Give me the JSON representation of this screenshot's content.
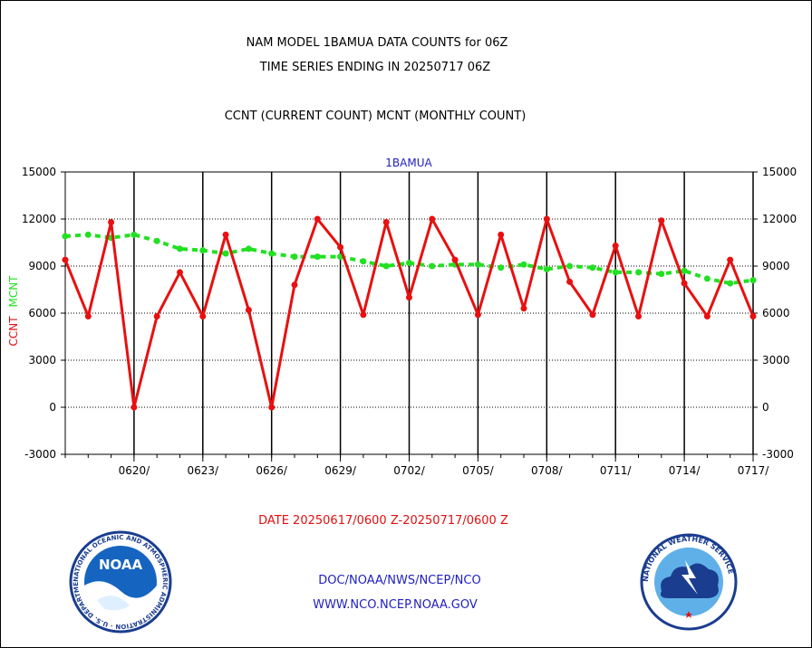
{
  "header": {
    "title_line1": "NAM MODEL 1BAMUA DATA COUNTS for 06Z",
    "title_line2": "TIME SERIES ENDING IN 20250717 06Z",
    "subtitle": "CCNT (CURRENT COUNT) MCNT (MONTHLY COUNT)"
  },
  "footer": {
    "date_range": "DATE 20250617/0600 Z-20250717/0600 Z",
    "link1": "DOC/NOAA/NWS/NCEP/NCO",
    "link2": "WWW.NCO.NCEP.NOAA.GOV"
  },
  "logos": {
    "noaa": {
      "icon": "noaa-logo",
      "label": "NOAA",
      "ring_text": "NATIONAL OCEANIC AND ATMOSPHERIC ADMINISTRATION · U.S. DEPARTMENT OF COMMERCE"
    },
    "nws": {
      "icon": "nws-logo",
      "ring_text": "NATIONAL WEATHER SERVICE"
    }
  },
  "chart_data": {
    "type": "line",
    "title": "1BAMUA",
    "ylabel_ccnt": "CCNT",
    "ylabel_mcnt": "MCNT",
    "ylim": [
      -3000,
      15000
    ],
    "yticks": [
      -3000,
      0,
      3000,
      6000,
      9000,
      12000,
      15000
    ],
    "x_tick_labels": [
      "0620/",
      "0623/",
      "0626/",
      "0629/",
      "0702/",
      "0705/",
      "0708/",
      "0711/",
      "0714/",
      "0717/"
    ],
    "x_tick_day_index": [
      3,
      6,
      9,
      12,
      15,
      18,
      21,
      24,
      27,
      30
    ],
    "grid": true,
    "colors": {
      "ccnt": "#e81010",
      "mcnt": "#22e022"
    },
    "series": [
      {
        "name": "CCNT",
        "x_day_index": [
          0,
          1,
          2,
          3,
          4,
          5,
          6,
          7,
          8,
          9,
          10,
          11,
          12,
          13,
          14,
          15,
          16,
          17,
          18,
          19,
          20,
          21,
          22,
          23,
          24,
          25,
          26,
          27,
          28,
          29,
          30
        ],
        "values": [
          9400,
          5800,
          11800,
          0,
          5800,
          8600,
          5800,
          11000,
          6200,
          0,
          7800,
          12000,
          10200,
          5900,
          11800,
          7000,
          12000,
          9400,
          5900,
          11000,
          6300,
          12000,
          8000,
          5900,
          10300,
          5800,
          11900,
          7900,
          5800,
          9400,
          5800
        ]
      },
      {
        "name": "MCNT",
        "x_day_index": [
          0,
          1,
          2,
          3,
          4,
          5,
          6,
          7,
          8,
          9,
          10,
          11,
          12,
          13,
          14,
          15,
          16,
          17,
          18,
          19,
          20,
          21,
          22,
          23,
          24,
          25,
          26,
          27,
          28,
          29,
          30
        ],
        "values": [
          10900,
          11000,
          10800,
          11000,
          10600,
          10100,
          10000,
          9800,
          10100,
          9800,
          9600,
          9600,
          9600,
          9300,
          9000,
          9200,
          9000,
          9100,
          9100,
          8900,
          9100,
          8800,
          9000,
          8900,
          8600,
          8600,
          8500,
          8700,
          8200,
          7900,
          8100
        ]
      }
    ]
  }
}
